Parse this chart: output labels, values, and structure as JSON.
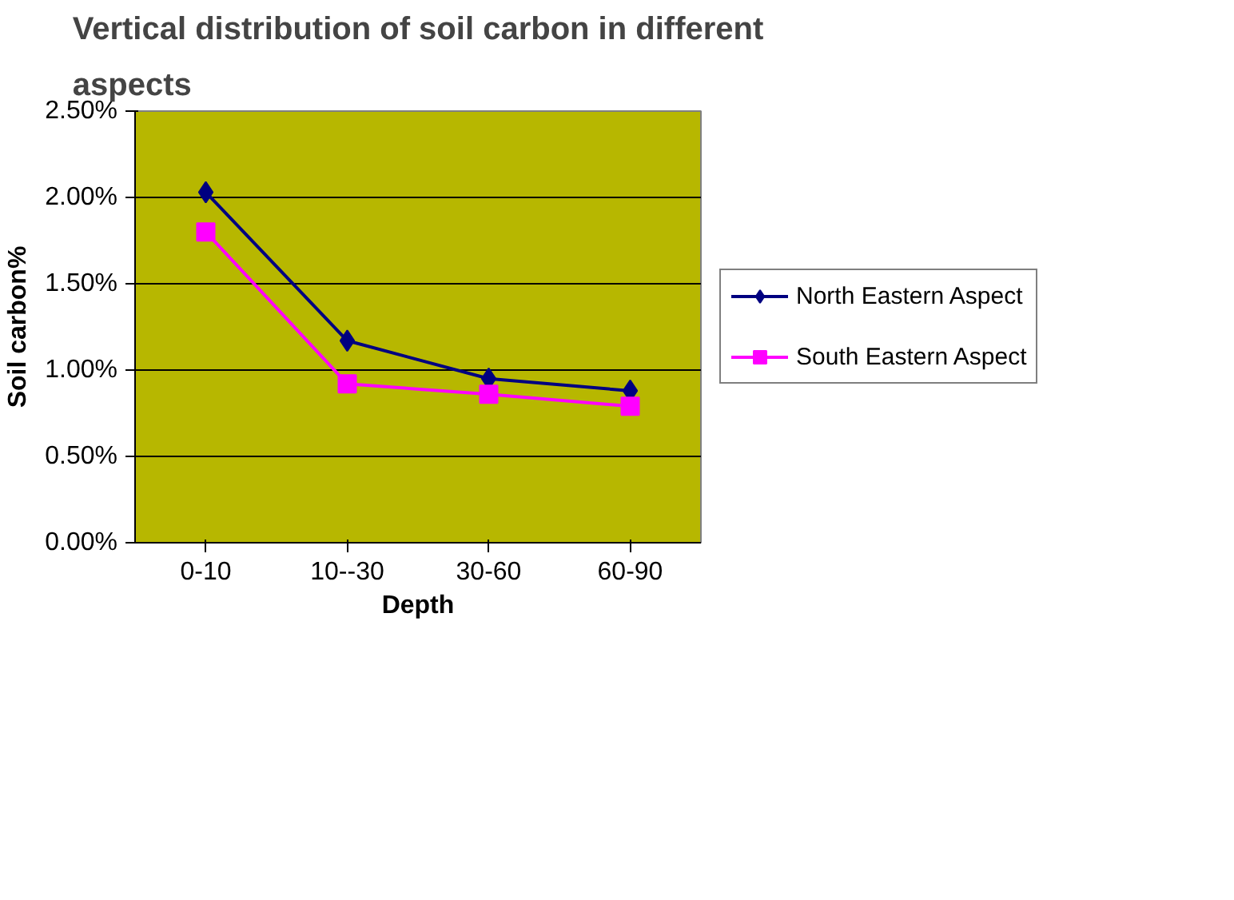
{
  "chart_data": {
    "type": "line",
    "title": "Vertical distribution of soil carbon in different aspects",
    "xlabel": "Depth",
    "ylabel": "Soil carbon%",
    "categories": [
      "0-10",
      "10--30",
      "30-60",
      "60-90"
    ],
    "series": [
      {
        "name": "North Eastern Aspect",
        "color": "#000080",
        "values": [
          2.03,
          1.17,
          0.95,
          0.88
        ],
        "marker": "diamond"
      },
      {
        "name": "South Eastern Aspect",
        "color": "#ff00ff",
        "values": [
          1.8,
          0.92,
          0.86,
          0.79
        ],
        "marker": "square"
      }
    ],
    "ylim": [
      0,
      2.5
    ],
    "yticks": [
      {
        "value": 0,
        "label": "0.00%"
      },
      {
        "value": 0.5,
        "label": "0.50%"
      },
      {
        "value": 1,
        "label": "1.00%"
      },
      {
        "value": 1.5,
        "label": "1.50%"
      },
      {
        "value": 2,
        "label": "2.00%"
      },
      {
        "value": 2.5,
        "label": "2.50%"
      }
    ],
    "grid": "y",
    "legend": "right",
    "line_style": "solid"
  }
}
